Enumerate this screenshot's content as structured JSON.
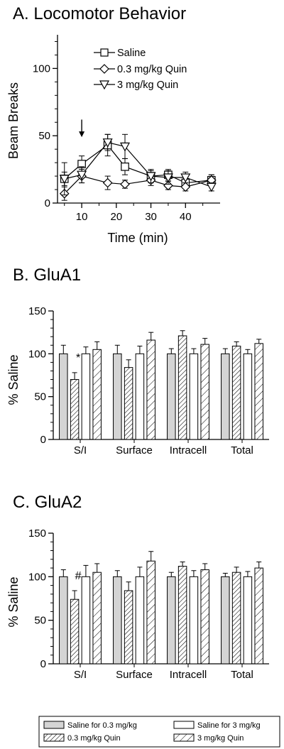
{
  "colors": {
    "ink": "#000000",
    "saline_fill": "#d4d4d4",
    "white": "#ffffff"
  },
  "chart_data": [
    {
      "id": "A",
      "type": "line",
      "title": "A. Locomotor Behavior",
      "xlabel": "Time (min)",
      "ylabel": "Beam Breaks",
      "xlim": [
        3,
        50
      ],
      "ylim": [
        0,
        125
      ],
      "xticks": [
        10,
        20,
        30,
        40
      ],
      "xtick_labels": [
        "10",
        "20",
        "30",
        "40"
      ],
      "yticks": [
        0,
        50,
        100
      ],
      "ytick_labels": [
        "0",
        "50",
        "100"
      ],
      "legend_position": "top-left",
      "annotation": {
        "type": "arrow",
        "x": 10,
        "y_from": 62,
        "y_to": 49
      },
      "x": [
        5,
        10,
        17.5,
        22.5,
        30,
        35,
        40,
        47.5
      ],
      "series": [
        {
          "name": "Saline",
          "marker": "square",
          "values": [
            18,
            29,
            43,
            27,
            20,
            21,
            15,
            17
          ],
          "errors": [
            5,
            6,
            8,
            6,
            4,
            4,
            3,
            4
          ]
        },
        {
          "name": "0.3 mg/kg Quin",
          "marker": "diamond",
          "values": [
            7,
            20,
            15,
            14,
            17,
            13,
            12,
            17
          ],
          "errors": [
            5,
            5,
            5,
            3,
            4,
            3,
            3,
            4
          ]
        },
        {
          "name": "3 mg/kg Quin",
          "marker": "triangle-down",
          "values": [
            18,
            21,
            45,
            42,
            20,
            19,
            19,
            12
          ],
          "errors": [
            12,
            6,
            6,
            9,
            5,
            5,
            4,
            3
          ]
        }
      ]
    },
    {
      "id": "B",
      "type": "bar",
      "title": "B. GluA1",
      "ylabel": "% Saline",
      "ylim": [
        0,
        150
      ],
      "yticks": [
        0,
        50,
        100,
        150
      ],
      "ytick_labels": [
        "0",
        "50",
        "100",
        "150"
      ],
      "categories": [
        "S/I",
        "Surface",
        "Intracell",
        "Total"
      ],
      "annotations": [
        {
          "text": "*",
          "category": 0,
          "series": 1
        }
      ],
      "series": [
        {
          "name": "Saline for 0.3 mg/kg",
          "values": [
            100,
            100,
            100,
            100
          ],
          "errors": [
            10,
            10,
            6,
            6
          ]
        },
        {
          "name": "0.3 mg/kg Quin",
          "values": [
            70,
            84,
            121,
            109
          ],
          "errors": [
            8,
            9,
            6,
            5
          ]
        },
        {
          "name": "Saline for 3 mg/kg",
          "values": [
            100,
            100,
            100,
            100
          ],
          "errors": [
            8,
            9,
            6,
            5
          ]
        },
        {
          "name": "3 mg/kg Quin",
          "values": [
            105,
            116,
            111,
            112
          ],
          "errors": [
            9,
            9,
            7,
            5
          ]
        }
      ]
    },
    {
      "id": "C",
      "type": "bar",
      "title": "C. GluA2",
      "ylabel": "% Saline",
      "ylim": [
        0,
        150
      ],
      "yticks": [
        0,
        50,
        100,
        150
      ],
      "ytick_labels": [
        "0",
        "50",
        "100",
        "150"
      ],
      "categories": [
        "S/I",
        "Surface",
        "Intracell",
        "Total"
      ],
      "annotations": [
        {
          "text": "#",
          "category": 0,
          "series": 1
        }
      ],
      "series": [
        {
          "name": "Saline for 0.3 mg/kg",
          "values": [
            100,
            100,
            100,
            100
          ],
          "errors": [
            8,
            7,
            5,
            4
          ]
        },
        {
          "name": "0.3 mg/kg Quin",
          "values": [
            74,
            84,
            112,
            105
          ],
          "errors": [
            10,
            10,
            5,
            6
          ]
        },
        {
          "name": "Saline for 3 mg/kg",
          "values": [
            100,
            100,
            100,
            100
          ],
          "errors": [
            13,
            11,
            7,
            6
          ]
        },
        {
          "name": "3 mg/kg Quin",
          "values": [
            105,
            118,
            108,
            110
          ],
          "errors": [
            10,
            11,
            7,
            7
          ]
        }
      ]
    }
  ],
  "bar_legend": {
    "items": [
      {
        "label": "Saline for 0.3 mg/kg",
        "style": "gray"
      },
      {
        "label": "Saline for 3 mg/kg",
        "style": "white"
      },
      {
        "label": "0.3 mg/kg Quin",
        "style": "hatch-dense"
      },
      {
        "label": "3 mg/kg Quin",
        "style": "hatch-sparse"
      }
    ]
  }
}
